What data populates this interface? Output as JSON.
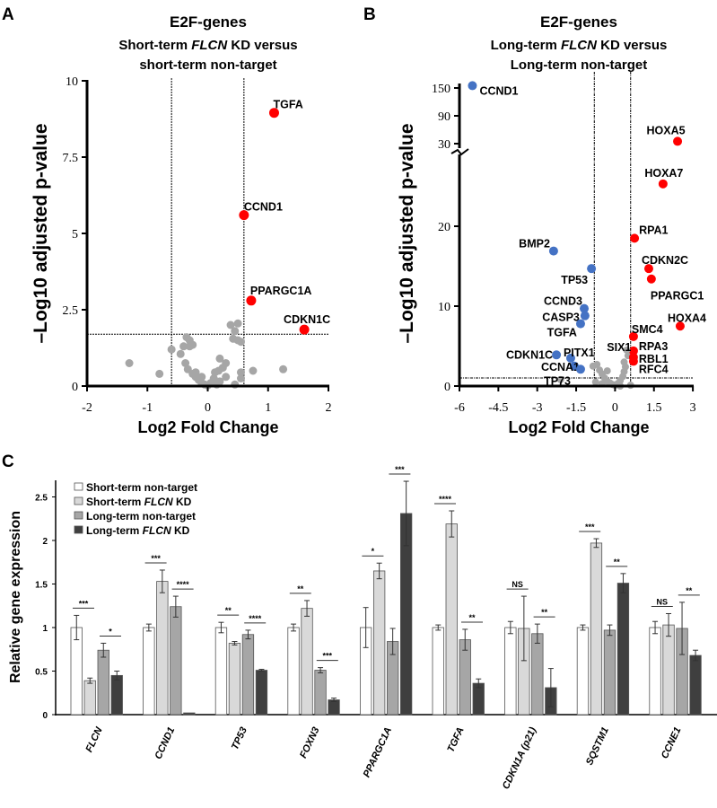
{
  "colors": {
    "up": "#ff0000",
    "down": "#4472c4",
    "ns": "#a6a6a6",
    "bar1": "#ffffff",
    "bar2": "#d9d9d9",
    "bar3": "#a6a6a6",
    "bar4": "#3f3f3f"
  },
  "chart_data": [
    {
      "panel": "A",
      "type": "scatter",
      "title": "E2F-genes",
      "subtitle_parts": [
        "Short-term ",
        "FLCN",
        " KD versus"
      ],
      "subtitle2": "short-term non-target",
      "xlabel": "Log2 Fold Change",
      "ylabel": "–Log10 adjusted p-value",
      "xlim": [
        -2,
        2
      ],
      "ylim": [
        0,
        10
      ],
      "xticks": [
        "-2",
        "-1",
        "0",
        "1",
        "2"
      ],
      "yticks": [
        "0",
        "2.5",
        "5",
        "7.5",
        "10"
      ],
      "thresholds": {
        "fc": [
          -0.6,
          0.6
        ],
        "p": 1.7
      },
      "labeled": [
        {
          "name": "TGFA",
          "x": 1.1,
          "y": 8.95,
          "dir": "up"
        },
        {
          "name": "CCND1",
          "x": 0.6,
          "y": 5.6,
          "dir": "up"
        },
        {
          "name": "PPARGC1A",
          "x": 0.72,
          "y": 2.8,
          "dir": "up"
        },
        {
          "name": "CDKN1C",
          "x": 1.6,
          "y": 1.85,
          "dir": "up"
        }
      ],
      "other": [
        [
          -1.3,
          0.75
        ],
        [
          -0.8,
          0.4
        ],
        [
          -0.6,
          1.2
        ],
        [
          -0.45,
          1.05
        ],
        [
          -0.4,
          1.3
        ],
        [
          -0.35,
          1.6
        ],
        [
          -0.3,
          1.5
        ],
        [
          -0.3,
          1.3
        ],
        [
          -0.25,
          1.35
        ],
        [
          -0.37,
          0.75
        ],
        [
          -0.33,
          0.55
        ],
        [
          -0.25,
          0.4
        ],
        [
          -0.2,
          0.3
        ],
        [
          -0.15,
          0.2
        ],
        [
          -0.1,
          0.1
        ],
        [
          -0.05,
          0.05
        ],
        [
          0,
          0.02
        ],
        [
          0.05,
          0.1
        ],
        [
          0.1,
          0.25
        ],
        [
          0.12,
          0.45
        ],
        [
          0.18,
          0.5
        ],
        [
          0.2,
          0.9
        ],
        [
          0.25,
          0.6
        ],
        [
          0.3,
          0.75
        ],
        [
          0.3,
          0.3
        ],
        [
          0.2,
          0.15
        ],
        [
          0.38,
          2.0
        ],
        [
          0.45,
          1.8
        ],
        [
          0.5,
          2.05
        ],
        [
          0.42,
          1.55
        ],
        [
          0.5,
          1.5
        ],
        [
          0.55,
          1.45
        ],
        [
          0.55,
          0.45
        ],
        [
          0.55,
          0.25
        ],
        [
          0.45,
          0.05
        ],
        [
          0.75,
          0.5
        ],
        [
          1.25,
          0.55
        ],
        [
          -0.2,
          0.45
        ],
        [
          0.15,
          0.05
        ],
        [
          -0.1,
          0.3
        ]
      ]
    },
    {
      "panel": "B",
      "type": "scatter",
      "title": "E2F-genes",
      "subtitle_parts": [
        "Long-term ",
        "FLCN",
        " KD versus"
      ],
      "subtitle2": "Long-term non-target",
      "xlabel": "Log2 Fold Change",
      "ylabel": "–Log10 adjusted p-value",
      "xlim": [
        -6,
        3
      ],
      "ylim": [
        0,
        150
      ],
      "y_break": [
        25,
        30
      ],
      "xticks": [
        "-6",
        "-4.5",
        "-3",
        "-1.5",
        "0",
        "1.5",
        "3"
      ],
      "yticks": [
        "0",
        "10",
        "20",
        "30",
        "90",
        "150"
      ],
      "thresholds": {
        "fc": [
          -0.8,
          0.6
        ],
        "p": 1.3
      },
      "labeled": [
        {
          "name": "CCND1",
          "x": -5.5,
          "y": 155,
          "dir": "down"
        },
        {
          "name": "HOXA5",
          "x": 2.41,
          "y": 35,
          "dir": "up"
        },
        {
          "name": "HOXA7",
          "x": 1.85,
          "y": 25.3,
          "dir": "up"
        },
        {
          "name": "RPA1",
          "x": 0.75,
          "y": 18.5,
          "dir": "up"
        },
        {
          "name": "BMP2",
          "x": -2.37,
          "y": 16.9,
          "dir": "down"
        },
        {
          "name": "TP53",
          "x": -0.91,
          "y": 14.7,
          "dir": "down"
        },
        {
          "name": "CDKN2C",
          "x": 1.3,
          "y": 14.7,
          "dir": "up"
        },
        {
          "name": "PPARGC1",
          "x": 1.4,
          "y": 13.4,
          "dir": "up"
        },
        {
          "name": "CCND3",
          "x": -1.19,
          "y": 9.7,
          "dir": "down"
        },
        {
          "name": "CASP3",
          "x": -1.16,
          "y": 8.8,
          "dir": "down"
        },
        {
          "name": "TGFA",
          "x": -1.33,
          "y": 7.8,
          "dir": "down"
        },
        {
          "name": "HOXA4",
          "x": 2.51,
          "y": 7.5,
          "dir": "up"
        },
        {
          "name": "SMC4",
          "x": 0.71,
          "y": 6.2,
          "dir": "up"
        },
        {
          "name": "RPA3",
          "x": 0.71,
          "y": 4.4,
          "dir": "up"
        },
        {
          "name": "RBL1",
          "x": 0.71,
          "y": 3.6,
          "dir": "up"
        },
        {
          "name": "RFC4",
          "x": 0.71,
          "y": 3.1,
          "dir": "up"
        },
        {
          "name": "CDKN1C",
          "x": -2.26,
          "y": 3.9,
          "dir": "down"
        },
        {
          "name": "PITX1",
          "x": -1.71,
          "y": 3.5,
          "dir": "down"
        },
        {
          "name": "CCNA1",
          "x": -1.57,
          "y": 2.5,
          "dir": "down"
        },
        {
          "name": "TP73",
          "x": -1.33,
          "y": 2.1,
          "dir": "down"
        },
        {
          "name": "SIX1",
          "x": 0.45,
          "y": 4.5,
          "dir": "ns"
        }
      ],
      "other": [
        [
          -0.85,
          2.5
        ],
        [
          -0.7,
          2.7
        ],
        [
          -0.6,
          2.0
        ],
        [
          -0.5,
          1.5
        ],
        [
          -0.4,
          1.0
        ],
        [
          -0.3,
          0.6
        ],
        [
          -0.2,
          0.4
        ],
        [
          -0.1,
          0.2
        ],
        [
          0,
          0.1
        ],
        [
          0.1,
          0.3
        ],
        [
          0.2,
          0.7
        ],
        [
          0.3,
          1.2
        ],
        [
          0.35,
          1.8
        ],
        [
          0.4,
          2.4
        ],
        [
          0.5,
          3.8
        ],
        [
          -0.75,
          0.5
        ],
        [
          -0.5,
          0.3
        ],
        [
          0.6,
          0.1
        ],
        [
          -2.1,
          0.8
        ],
        [
          0.2,
          0.0
        ],
        [
          -0.3,
          1.9
        ],
        [
          0.35,
          3.0
        ]
      ]
    },
    {
      "panel": "C",
      "type": "bar",
      "ylabel": "Relative gene expression",
      "ylim": [
        0,
        2.7
      ],
      "yticks": [
        "0",
        "0.5",
        "1",
        "1.5",
        "2",
        "2.5"
      ],
      "categories": [
        "FLCN",
        "CCND1",
        "TP53",
        "FOXN3",
        "PPARGC1A",
        "TGFA",
        "CDKN1A (p21)",
        "SQSTM1",
        "CCNE1"
      ],
      "legend": [
        {
          "text": [
            "Short-term non-target"
          ]
        },
        {
          "text": [
            "Short-term ",
            "FLCN",
            " KD"
          ]
        },
        {
          "text": [
            "Long-term non-target"
          ]
        },
        {
          "text": [
            "Long-term ",
            "FLCN",
            " KD"
          ]
        }
      ],
      "series": [
        {
          "name": "Short-term non-target",
          "values": [
            1.0,
            1.0,
            1.0,
            1.0,
            1.0,
            1.0,
            1.0,
            1.0,
            1.0
          ],
          "errors": [
            0.14,
            0.04,
            0.06,
            0.04,
            0.23,
            0.03,
            0.07,
            0.03,
            0.07
          ]
        },
        {
          "name": "Short-term FLCN KD",
          "values": [
            0.39,
            1.53,
            0.82,
            1.22,
            1.65,
            2.19,
            0.99,
            1.97,
            1.03
          ],
          "errors": [
            0.03,
            0.13,
            0.02,
            0.09,
            0.09,
            0.15,
            0.37,
            0.05,
            0.13
          ]
        },
        {
          "name": "Long-term non-target",
          "values": [
            0.74,
            1.24,
            0.92,
            0.51,
            0.84,
            0.86,
            0.93,
            0.97,
            0.99
          ],
          "errors": [
            0.08,
            0.12,
            0.05,
            0.03,
            0.15,
            0.12,
            0.11,
            0.06,
            0.3
          ]
        },
        {
          "name": "Long-term FLCN KD",
          "values": [
            0.45,
            0.02,
            0.51,
            0.17,
            2.31,
            0.36,
            0.31,
            1.51,
            0.68
          ],
          "errors": [
            0.05,
            0.0,
            0.01,
            0.02,
            0.37,
            0.05,
            0.22,
            0.11,
            0.06
          ]
        }
      ],
      "significance_short": [
        "***",
        "***",
        "**",
        "**",
        "*",
        "****",
        "NS",
        "***",
        "NS"
      ],
      "significance_long": [
        "*",
        "****",
        "****",
        "***",
        "***",
        "**",
        "**",
        "**",
        "**"
      ]
    }
  ],
  "panels": {
    "a": "A",
    "b": "B",
    "c": "C"
  }
}
